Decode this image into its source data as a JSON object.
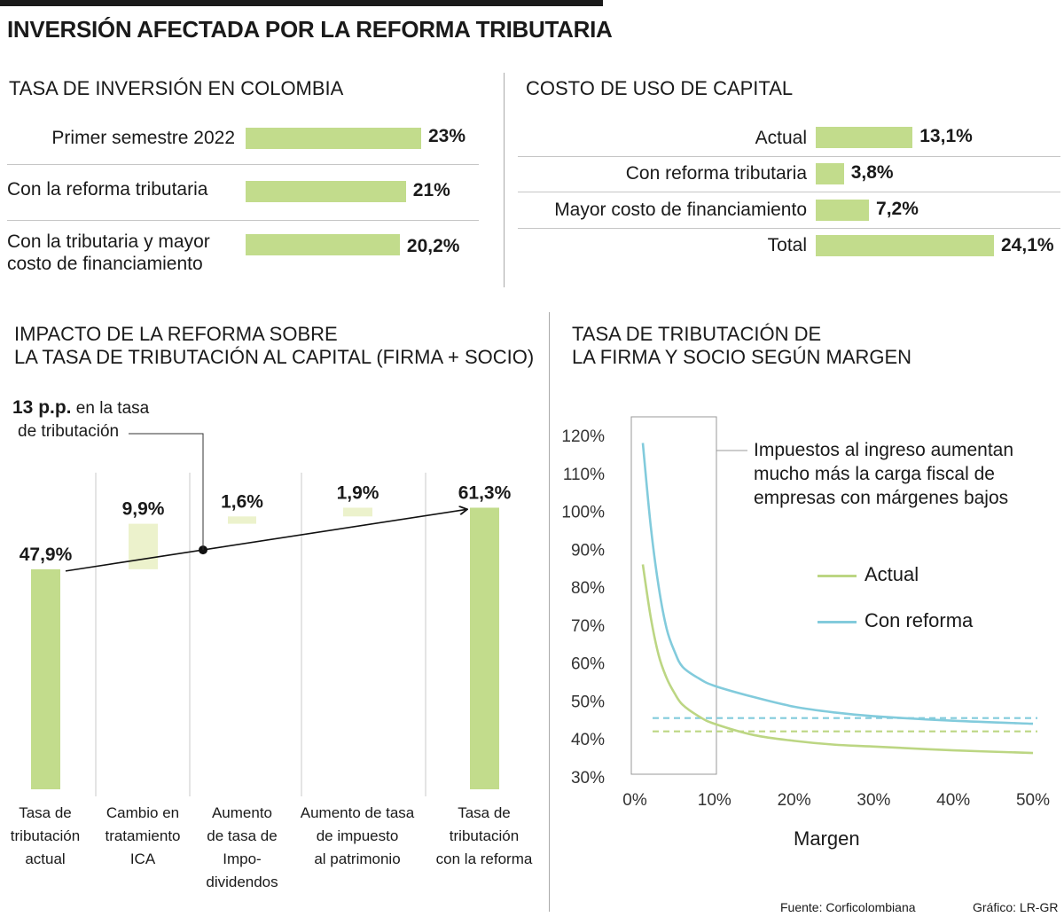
{
  "title": "INVERSIÓN AFECTADA POR LA REFORMA TRIBUTARIA",
  "colors": {
    "bar": "#c2dc8c",
    "bar_light": "#ecf2cc",
    "actual": "#bcd683",
    "reforma": "#82cbdc"
  },
  "chart_data": [
    {
      "type": "bar",
      "title": "TASA DE INVERSIÓN EN COLOMBIA",
      "categories": [
        "Primer semestre 2022",
        "Con la reforma tributaria",
        "Con la tributaria y mayor costo de financiamiento"
      ],
      "label_lines": [
        [
          "Primer semestre 2022"
        ],
        [
          "Con la reforma tributaria"
        ],
        [
          "Con la tributaria y mayor",
          "costo de financiamiento"
        ]
      ],
      "values": [
        23,
        21,
        20.2
      ],
      "value_labels": [
        "23%",
        "21%",
        "20,2%"
      ],
      "unit": "%"
    },
    {
      "type": "bar",
      "title": "COSTO DE USO DE CAPITAL",
      "categories": [
        "Actual",
        "Con reforma tributaria",
        "Mayor costo de financiamiento",
        "Total"
      ],
      "values": [
        13.1,
        3.8,
        7.2,
        24.1
      ],
      "value_labels": [
        "13,1%",
        "3,8%",
        "7,2%",
        "24,1%"
      ],
      "unit": "%"
    },
    {
      "type": "bar",
      "subtype": "waterfall",
      "title_lines": [
        "IMPACTO DE LA REFORMA SOBRE",
        "LA TASA DE TRIBUTACIÓN AL CAPITAL (FIRMA + SOCIO)"
      ],
      "categories": [
        [
          "Tasa de",
          "tributación",
          "actual"
        ],
        [
          "Cambio en",
          "tratamiento",
          "ICA"
        ],
        [
          "Aumento",
          "de tasa de",
          "Impo-",
          "dividendos"
        ],
        [
          "Aumento de tasa",
          "de impuesto",
          "al patrimonio"
        ],
        [
          "Tasa de",
          "tributación",
          "con la reforma"
        ]
      ],
      "values": [
        47.9,
        9.9,
        1.6,
        1.9,
        61.3
      ],
      "value_labels": [
        "47,9%",
        "9,9%",
        "1,6%",
        "1,9%",
        "61,3%"
      ],
      "annotation": {
        "bold": "13 p.p.",
        "line1": " en la tasa",
        "line2": "de tributación"
      }
    },
    {
      "type": "line",
      "title_lines": [
        "TASA DE TRIBUTACIÓN DE",
        "LA FIRMA Y SOCIO SEGÚN MARGEN"
      ],
      "xlabel": "Margen",
      "xlim": [
        0,
        50
      ],
      "ylim": [
        30,
        120
      ],
      "xticks": [
        "0%",
        "10%",
        "20%",
        "30%",
        "40%",
        "50%"
      ],
      "yticks": [
        "30%",
        "40%",
        "50%",
        "60%",
        "70%",
        "80%",
        "90%",
        "100%",
        "110%",
        "120%"
      ],
      "series": [
        {
          "name": "Actual",
          "x": [
            1,
            2,
            3,
            4,
            5,
            6,
            8,
            10,
            15,
            20,
            25,
            30,
            40,
            50
          ],
          "values": [
            86,
            72,
            62,
            56,
            52,
            49,
            46,
            44,
            41,
            39.5,
            38.5,
            38,
            37,
            36.3
          ]
        },
        {
          "name": "Con reforma",
          "x": [
            1,
            2,
            3,
            4,
            5,
            6,
            8,
            10,
            15,
            20,
            25,
            30,
            40,
            50
          ],
          "values": [
            118,
            96,
            80,
            69,
            63,
            59,
            56,
            54,
            51,
            48.5,
            47,
            46,
            44.8,
            44
          ]
        }
      ],
      "reference_lines": [
        {
          "name": "Con reforma",
          "value": 45.5
        },
        {
          "name": "Actual",
          "value": 42
        }
      ],
      "annotation": [
        "Impuestos al ingreso aumentan",
        "mucho más la carga fiscal de",
        "empresas con márgenes bajos"
      ]
    }
  ],
  "footer": {
    "source": "Fuente: Corficolombiana",
    "credit": "Gráfico: LR-GR"
  }
}
